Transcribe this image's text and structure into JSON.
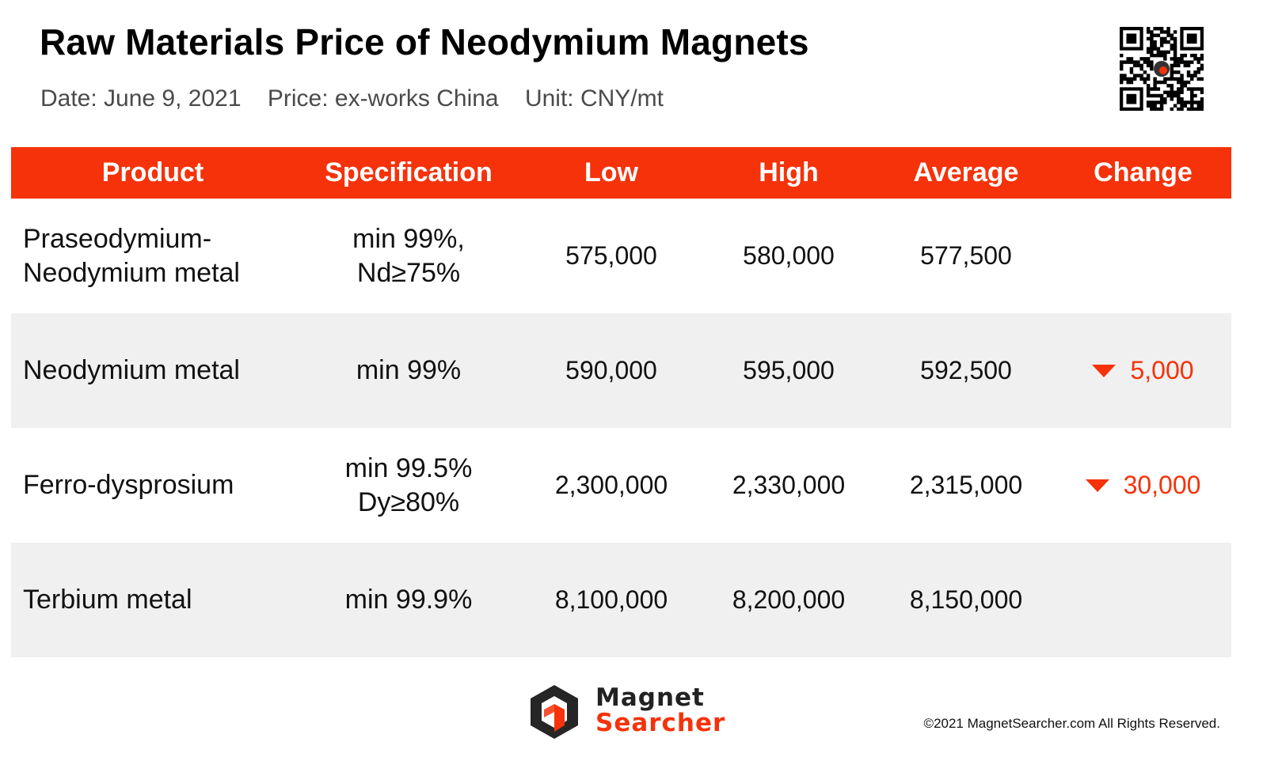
{
  "title": "Raw Materials Price of Neodymium Magnets",
  "subtitle": "Date: June 9, 2021    Price: ex-works China    Unit: CNY/mt",
  "colors": {
    "accent": "#f5320a",
    "row_alt": "#f0f0f0"
  },
  "table": {
    "headers": [
      "Product",
      "Specification",
      "Low",
      "High",
      "Average",
      "Change"
    ],
    "rows": [
      {
        "product": "Praseodymium-\nNeodymium metal",
        "spec": "min 99%,\nNd≥75%",
        "low": "575,000",
        "high": "580,000",
        "average": "577,500",
        "change": "",
        "direction": ""
      },
      {
        "product": "Neodymium metal",
        "spec": "min 99%",
        "low": "590,000",
        "high": "595,000",
        "average": "592,500",
        "change": "5,000",
        "direction": "down"
      },
      {
        "product": "Ferro-dysprosium",
        "spec": "min 99.5%\nDy≥80%",
        "low": "2,300,000",
        "high": "2,330,000",
        "average": "2,315,000",
        "change": "30,000",
        "direction": "down"
      },
      {
        "product": "Terbium metal",
        "spec": "min 99.9%",
        "low": "8,100,000",
        "high": "8,200,000",
        "average": "8,150,000",
        "change": "",
        "direction": ""
      }
    ]
  },
  "footer": {
    "brand_line1": "Magnet",
    "brand_line2": "Searcher",
    "copyright": "©2021 MagnetSearcher.com All Rights Reserved."
  },
  "icons": {
    "qr": "qr-code-icon",
    "logo": "magnet-searcher-logo-icon",
    "down": "down-triangle-icon"
  }
}
